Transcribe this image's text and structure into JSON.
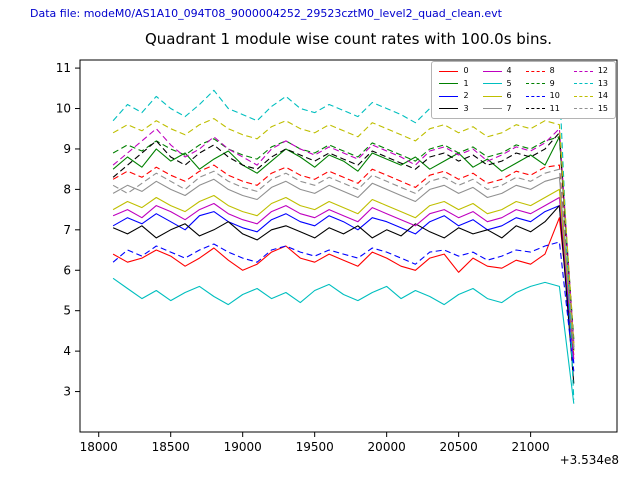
{
  "header": {
    "data_file_label": "Data file: modeM0/AS1A10_094T08_9000004252_29523cztM0_level2_quad_clean.evt"
  },
  "chart_data": {
    "type": "line",
    "title": "Quadrant 1 module wise count rates with 100.0s bins.",
    "xlabel": "",
    "ylabel": "",
    "x_offset_label": "+3.534e8",
    "xlim": [
      17870,
      21600
    ],
    "ylim": [
      2.0,
      11.2
    ],
    "xticks": [
      18000,
      18500,
      19000,
      19500,
      20000,
      20500,
      21000
    ],
    "yticks": [
      3,
      4,
      5,
      6,
      7,
      8,
      9,
      10,
      11
    ],
    "grid": false,
    "legend_position": "upper right",
    "legend_columns": 4,
    "x": [
      18100,
      18200,
      18300,
      18400,
      18500,
      18600,
      18700,
      18800,
      18900,
      19000,
      19100,
      19200,
      19300,
      19400,
      19500,
      19600,
      19700,
      19800,
      19900,
      20000,
      20100,
      20200,
      20300,
      20400,
      20500,
      20600,
      20700,
      20800,
      20900,
      21000,
      21100,
      21200,
      21300
    ],
    "series": [
      {
        "name": "0",
        "color": "#ff0000",
        "dashed": false,
        "values": [
          6.4,
          6.2,
          6.3,
          6.5,
          6.35,
          6.1,
          6.3,
          6.55,
          6.25,
          6.0,
          6.15,
          6.45,
          6.6,
          6.3,
          6.2,
          6.4,
          6.25,
          6.1,
          6.45,
          6.3,
          6.1,
          6.0,
          6.3,
          6.4,
          5.95,
          6.3,
          6.1,
          6.05,
          6.25,
          6.15,
          6.4,
          7.3,
          3.9
        ]
      },
      {
        "name": "1",
        "color": "#008000",
        "dashed": false,
        "values": [
          8.5,
          8.8,
          8.55,
          9.0,
          8.7,
          8.9,
          8.5,
          8.75,
          8.95,
          8.6,
          8.4,
          8.7,
          9.0,
          8.8,
          8.55,
          8.85,
          8.7,
          8.45,
          8.9,
          8.75,
          8.6,
          8.8,
          8.5,
          8.7,
          8.9,
          8.55,
          8.75,
          8.45,
          8.65,
          8.85,
          8.6,
          9.3,
          4.1
        ]
      },
      {
        "name": "2",
        "color": "#0000ff",
        "dashed": false,
        "values": [
          7.1,
          7.3,
          7.15,
          7.4,
          7.2,
          7.0,
          7.35,
          7.45,
          7.2,
          7.05,
          6.95,
          7.25,
          7.4,
          7.2,
          7.1,
          7.35,
          7.2,
          7.0,
          7.3,
          7.2,
          7.05,
          6.9,
          7.2,
          7.35,
          7.1,
          7.25,
          7.0,
          7.1,
          7.3,
          7.2,
          7.45,
          7.6,
          3.7
        ]
      },
      {
        "name": "3",
        "color": "#000000",
        "dashed": false,
        "values": [
          7.05,
          6.9,
          7.1,
          6.8,
          7.0,
          7.15,
          6.85,
          7.0,
          7.2,
          6.9,
          6.75,
          7.0,
          7.1,
          6.95,
          6.8,
          7.05,
          6.9,
          7.1,
          6.8,
          7.0,
          6.85,
          7.15,
          6.95,
          6.8,
          7.05,
          6.9,
          7.0,
          6.8,
          7.1,
          6.95,
          7.2,
          7.6,
          3.2
        ]
      },
      {
        "name": "4",
        "color": "#bf00bf",
        "dashed": false,
        "values": [
          7.35,
          7.5,
          7.3,
          7.6,
          7.45,
          7.25,
          7.5,
          7.65,
          7.4,
          7.25,
          7.15,
          7.45,
          7.6,
          7.4,
          7.3,
          7.5,
          7.35,
          7.2,
          7.55,
          7.4,
          7.25,
          7.1,
          7.4,
          7.5,
          7.3,
          7.45,
          7.2,
          7.3,
          7.5,
          7.4,
          7.6,
          7.8,
          3.8
        ]
      },
      {
        "name": "5",
        "color": "#00bfbf",
        "dashed": false,
        "values": [
          5.8,
          5.55,
          5.3,
          5.5,
          5.25,
          5.45,
          5.6,
          5.35,
          5.15,
          5.4,
          5.55,
          5.3,
          5.45,
          5.2,
          5.5,
          5.65,
          5.4,
          5.25,
          5.45,
          5.6,
          5.3,
          5.5,
          5.35,
          5.15,
          5.4,
          5.55,
          5.3,
          5.2,
          5.45,
          5.6,
          5.7,
          5.6,
          2.7
        ]
      },
      {
        "name": "6",
        "color": "#bfbf00",
        "dashed": false,
        "values": [
          7.5,
          7.7,
          7.55,
          7.8,
          7.6,
          7.45,
          7.7,
          7.85,
          7.6,
          7.45,
          7.35,
          7.65,
          7.8,
          7.6,
          7.5,
          7.7,
          7.55,
          7.4,
          7.75,
          7.6,
          7.45,
          7.3,
          7.6,
          7.7,
          7.5,
          7.65,
          7.4,
          7.5,
          7.7,
          7.6,
          7.8,
          8.0,
          4.0
        ]
      },
      {
        "name": "7",
        "color": "#909090",
        "dashed": false,
        "values": [
          7.9,
          8.1,
          7.95,
          8.2,
          8.0,
          7.85,
          8.1,
          8.25,
          8.0,
          7.85,
          7.75,
          8.05,
          8.2,
          8.0,
          7.9,
          8.1,
          7.95,
          7.8,
          8.15,
          8.0,
          7.85,
          7.7,
          8.0,
          8.1,
          7.9,
          8.05,
          7.8,
          7.9,
          8.1,
          8.0,
          8.2,
          8.3,
          4.1
        ]
      },
      {
        "name": "8",
        "color": "#ff0000",
        "dashed": true,
        "values": [
          8.25,
          8.45,
          8.3,
          8.55,
          8.35,
          8.2,
          8.45,
          8.6,
          8.35,
          8.2,
          8.1,
          8.4,
          8.55,
          8.35,
          8.25,
          8.45,
          8.3,
          8.15,
          8.5,
          8.35,
          8.2,
          8.05,
          8.35,
          8.45,
          8.25,
          8.4,
          8.15,
          8.25,
          8.45,
          8.35,
          8.55,
          8.6,
          4.2
        ]
      },
      {
        "name": "9",
        "color": "#008000",
        "dashed": true,
        "values": [
          8.9,
          9.1,
          8.95,
          9.2,
          9.0,
          8.85,
          9.1,
          9.25,
          9.0,
          8.85,
          8.75,
          9.05,
          9.2,
          9.0,
          8.9,
          9.1,
          8.95,
          8.8,
          9.15,
          9.0,
          8.85,
          8.7,
          9.0,
          9.1,
          8.9,
          9.05,
          8.8,
          8.9,
          9.1,
          9.0,
          9.2,
          9.3,
          4.3
        ]
      },
      {
        "name": "10",
        "color": "#0000ff",
        "dashed": true,
        "values": [
          6.2,
          6.5,
          6.35,
          6.6,
          6.45,
          6.3,
          6.5,
          6.65,
          6.45,
          6.3,
          6.2,
          6.5,
          6.6,
          6.45,
          6.35,
          6.5,
          6.4,
          6.3,
          6.55,
          6.45,
          6.3,
          6.15,
          6.45,
          6.5,
          6.35,
          6.45,
          6.25,
          6.35,
          6.5,
          6.45,
          6.6,
          6.7,
          3.5
        ]
      },
      {
        "name": "11",
        "color": "#000000",
        "dashed": true,
        "values": [
          8.3,
          8.6,
          8.9,
          9.2,
          8.8,
          8.6,
          8.9,
          9.1,
          8.8,
          8.6,
          8.5,
          8.8,
          9.0,
          8.85,
          8.7,
          8.9,
          8.75,
          8.6,
          8.95,
          8.8,
          8.65,
          8.5,
          8.8,
          8.9,
          8.7,
          8.85,
          8.6,
          8.7,
          8.9,
          8.8,
          9.0,
          9.4,
          4.0
        ]
      },
      {
        "name": "12",
        "color": "#bf00bf",
        "dashed": true,
        "values": [
          8.6,
          8.9,
          9.2,
          9.5,
          9.1,
          8.8,
          9.0,
          9.3,
          9.0,
          8.8,
          8.6,
          9.0,
          9.2,
          9.0,
          8.85,
          9.05,
          8.9,
          8.75,
          9.1,
          8.95,
          8.8,
          8.6,
          8.95,
          9.05,
          8.85,
          9.0,
          8.7,
          8.85,
          9.05,
          8.95,
          9.15,
          9.5,
          4.2
        ]
      },
      {
        "name": "13",
        "color": "#00bfbf",
        "dashed": true,
        "values": [
          9.7,
          10.1,
          9.9,
          10.3,
          10.0,
          9.8,
          10.1,
          10.45,
          10.0,
          9.85,
          9.7,
          10.05,
          10.3,
          10.0,
          9.9,
          10.1,
          9.95,
          9.8,
          10.15,
          10.0,
          9.85,
          9.65,
          10.0,
          10.1,
          9.9,
          10.05,
          9.75,
          9.9,
          10.5,
          10.0,
          10.2,
          10.6,
          2.8
        ]
      },
      {
        "name": "14",
        "color": "#bfbf00",
        "dashed": true,
        "values": [
          9.4,
          9.6,
          9.45,
          9.7,
          9.5,
          9.35,
          9.6,
          9.75,
          9.5,
          9.35,
          9.25,
          9.55,
          9.7,
          9.5,
          9.4,
          9.6,
          9.45,
          9.3,
          9.65,
          9.5,
          9.35,
          9.2,
          9.5,
          9.6,
          9.4,
          9.55,
          9.3,
          9.4,
          9.6,
          9.5,
          9.7,
          9.6,
          4.15
        ]
      },
      {
        "name": "15",
        "color": "#909090",
        "dashed": true,
        "values": [
          8.1,
          7.9,
          8.15,
          8.4,
          8.2,
          8.0,
          8.3,
          8.45,
          8.2,
          8.05,
          7.95,
          8.25,
          8.4,
          8.2,
          8.1,
          8.3,
          8.15,
          8.0,
          8.35,
          8.2,
          8.05,
          7.9,
          8.2,
          8.3,
          8.1,
          8.25,
          8.0,
          8.1,
          8.3,
          8.2,
          8.4,
          8.5,
          4.05
        ]
      }
    ]
  }
}
